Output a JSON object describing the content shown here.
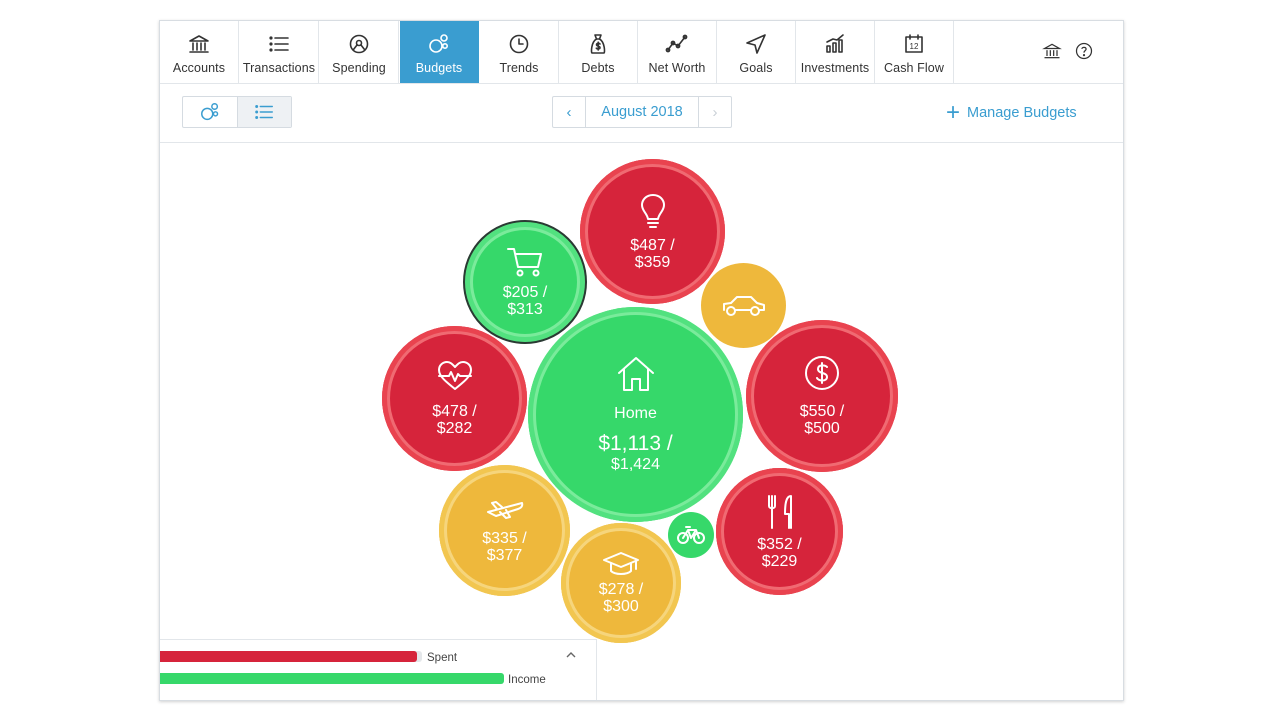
{
  "nav": {
    "items": [
      {
        "label": "Accounts",
        "icon": "bank-icon"
      },
      {
        "label": "Transactions",
        "icon": "list-icon"
      },
      {
        "label": "Spending",
        "icon": "pie-chart-icon"
      },
      {
        "label": "Budgets",
        "icon": "bubbles-icon",
        "active": true
      },
      {
        "label": "Trends",
        "icon": "clock-icon"
      },
      {
        "label": "Debts",
        "icon": "money-bag-icon"
      },
      {
        "label": "Net Worth",
        "icon": "line-chart-icon"
      },
      {
        "label": "Goals",
        "icon": "navigation-arrow-icon"
      },
      {
        "label": "Investments",
        "icon": "bar-chart-icon"
      },
      {
        "label": "Cash Flow",
        "icon": "calendar-icon"
      }
    ],
    "accent_color": "#3a9dd0"
  },
  "toolbar": {
    "month": "August 2018",
    "prev_label": "‹",
    "next_label": "›",
    "manage_label": "Manage Budgets",
    "manage_plus": "+"
  },
  "budgets": {
    "home": {
      "name": "Home",
      "spent": "$1,113 /",
      "budget": "$1,424",
      "status": "green",
      "icon": "house-icon"
    },
    "utilities": {
      "spent": "$487 /",
      "budget": "$359",
      "status": "red",
      "icon": "lightbulb-icon"
    },
    "shopping": {
      "spent": "$205 /",
      "budget": "$313",
      "status": "green",
      "icon": "shopping-cart-icon"
    },
    "auto": {
      "status": "yellow",
      "icon": "car-icon"
    },
    "health": {
      "spent": "$478 /",
      "budget": "$282",
      "status": "red",
      "icon": "heart-pulse-icon"
    },
    "fees": {
      "spent": "$550 /",
      "budget": "$500",
      "status": "red",
      "icon": "dollar-icon"
    },
    "travel": {
      "spent": "$335 /",
      "budget": "$377",
      "status": "yellow",
      "icon": "airplane-icon"
    },
    "education": {
      "spent": "$278 /",
      "budget": "$300",
      "status": "yellow",
      "icon": "graduation-cap-icon"
    },
    "sports": {
      "status": "green",
      "icon": "bicycle-icon"
    },
    "food": {
      "spent": "$352 /",
      "budget": "$229",
      "status": "red",
      "icon": "fork-knife-icon"
    }
  },
  "colors": {
    "red": "#d6243b",
    "green": "#36d86a",
    "yellow": "#eeb83c"
  },
  "legend": {
    "spent_label": "Spent",
    "income_label": "Income",
    "spent_fraction": 0.98,
    "income_fraction": 1.0,
    "collapse_icon": "chevron-up-icon"
  }
}
